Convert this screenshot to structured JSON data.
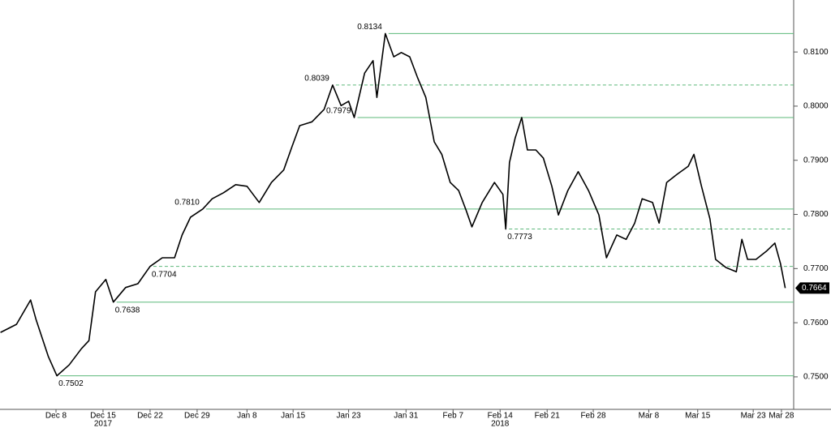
{
  "chart_data": {
    "type": "line",
    "color": "#000000",
    "level_color": "#5cb87a",
    "x": [
      -0.9,
      0.8,
      2.3,
      2.9,
      4.2,
      5.1,
      6.4,
      7.7,
      8.5,
      9.2,
      10.3,
      11.1,
      12.4,
      13.7,
      15.0,
      16.3,
      17.6,
      18.4,
      19.3,
      20.6,
      21.6,
      22.8,
      24.1,
      25.3,
      26.6,
      27.9,
      29.2,
      30.1,
      30.9,
      32.2,
      33.5,
      34.4,
      35.3,
      36.1,
      36.7,
      37.8,
      38.7,
      39.1,
      40.0,
      40.9,
      41.7,
      42.6,
      43.4,
      44.3,
      45.2,
      46.0,
      46.9,
      47.8,
      48.6,
      49.2,
      50.3,
      51.6,
      52.5,
      52.8,
      53.2,
      53.8,
      54.5,
      55.1,
      56.0,
      56.8,
      57.7,
      58.4,
      59.4,
      60.5,
      61.6,
      62.7,
      63.5,
      64.6,
      65.6,
      66.5,
      67.3,
      68.4,
      69.1,
      69.9,
      71.0,
      72.2,
      72.8,
      73.6,
      74.5,
      75.1,
      76.2,
      77.3,
      77.9,
      78.5,
      79.4,
      80.5,
      81.4,
      82.0,
      82.5
    ],
    "values": [
      0.7582,
      0.7597,
      0.7642,
      0.7605,
      0.7537,
      0.7502,
      0.7522,
      0.7552,
      0.7567,
      0.7657,
      0.768,
      0.7638,
      0.7665,
      0.7672,
      0.7704,
      0.772,
      0.772,
      0.7762,
      0.7795,
      0.781,
      0.7829,
      0.784,
      0.7855,
      0.7852,
      0.7822,
      0.7859,
      0.7882,
      0.7926,
      0.7964,
      0.7971,
      0.7994,
      0.8039,
      0.8001,
      0.8009,
      0.7979,
      0.8061,
      0.8084,
      0.8016,
      0.8134,
      0.8091,
      0.8099,
      0.8091,
      0.8054,
      0.8016,
      0.7934,
      0.7911,
      0.7859,
      0.7844,
      0.7807,
      0.7777,
      0.7822,
      0.7859,
      0.7837,
      0.7773,
      0.7896,
      0.7941,
      0.7979,
      0.7919,
      0.7919,
      0.7904,
      0.7852,
      0.7799,
      0.7844,
      0.7879,
      0.7844,
      0.7799,
      0.772,
      0.7762,
      0.7754,
      0.7784,
      0.7829,
      0.7822,
      0.7784,
      0.7859,
      0.7874,
      0.7889,
      0.7911,
      0.7852,
      0.7792,
      0.7717,
      0.7702,
      0.7694,
      0.7754,
      0.7717,
      0.7717,
      0.7732,
      0.7747,
      0.7709,
      0.7664
    ],
    "xlim": [
      -0.95,
      83.4
    ],
    "ylim": [
      0.744,
      0.8196
    ],
    "yticks": [
      {
        "value": 0.75,
        "label": "0.7500"
      },
      {
        "value": 0.76,
        "label": "0.7600"
      },
      {
        "value": 0.77,
        "label": "0.7700"
      },
      {
        "value": 0.78,
        "label": "0.7800"
      },
      {
        "value": 0.79,
        "label": "0.7900"
      },
      {
        "value": 0.8,
        "label": "0.8000"
      },
      {
        "value": 0.81,
        "label": "0.8100"
      }
    ],
    "xticks": [
      {
        "value": 5,
        "label": "Dec 8"
      },
      {
        "value": 10,
        "label": "Dec 15"
      },
      {
        "value": 15,
        "label": "Dec 22"
      },
      {
        "value": 20,
        "label": "Dec 29"
      },
      {
        "value": 25.3,
        "label": "Jan 8"
      },
      {
        "value": 30.2,
        "label": "Jan 15"
      },
      {
        "value": 36.1,
        "label": "Jan 23"
      },
      {
        "value": 42.2,
        "label": "Jan 31"
      },
      {
        "value": 47.2,
        "label": "Feb 7"
      },
      {
        "value": 52.2,
        "label": "Feb 14"
      },
      {
        "value": 57.2,
        "label": "Feb 21"
      },
      {
        "value": 62.1,
        "label": "Feb 28"
      },
      {
        "value": 68,
        "label": "Mar 8"
      },
      {
        "value": 73.2,
        "label": "Mar 15"
      },
      {
        "value": 79.1,
        "label": "Mar 23"
      },
      {
        "value": 82.1,
        "label": "Mar 28"
      }
    ],
    "year_labels": [
      {
        "value": 10,
        "label": "2017"
      },
      {
        "value": 52.2,
        "label": "2018"
      }
    ],
    "levels": [
      {
        "value": 0.8134,
        "label": "0.8134",
        "style": "solid",
        "x": 40.0
      },
      {
        "value": 0.8039,
        "label": "0.8039",
        "style": "dashed",
        "x": 34.4
      },
      {
        "value": 0.7979,
        "label": "0.7979",
        "style": "solid",
        "x": 36.7
      },
      {
        "value": 0.781,
        "label": "0.7810",
        "style": "solid",
        "x": 20.6
      },
      {
        "value": 0.7773,
        "label": "0.7773",
        "style": "dashed",
        "x": 52.8
      },
      {
        "value": 0.7704,
        "label": "0.7704",
        "style": "dashed",
        "x": 15.0
      },
      {
        "value": 0.7638,
        "label": "0.7638",
        "style": "solid",
        "x": 11.1
      },
      {
        "value": 0.7502,
        "label": "0.7502",
        "style": "solid",
        "x": 5.1
      }
    ],
    "last_value": {
      "value": 0.7664,
      "label": "0.7664"
    }
  }
}
